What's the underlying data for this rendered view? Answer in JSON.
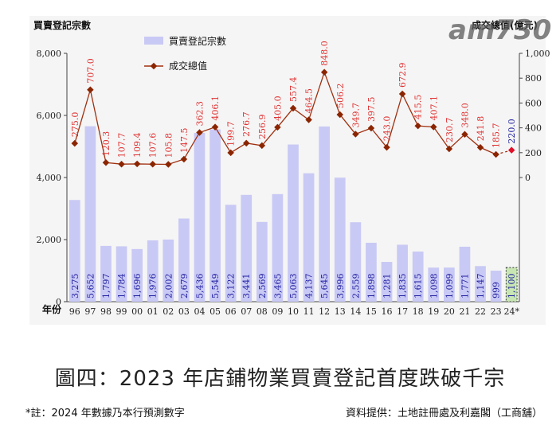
{
  "logo_text": "am730",
  "caption": "圖四：2023 年店鋪物業買賣登記首度跌破千宗",
  "note_left": "*註：2024 年數據乃本行預測數字",
  "note_right": "資料提供：土地註冊處及利嘉閣（工商舖）",
  "colors": {
    "bar": "#c9c9f5",
    "bar_forecast": "#c8e6b4",
    "line": "#a03010",
    "marker": "#8b2500",
    "marker_forecast": "#e0102a",
    "value_red": "#e03030",
    "value_blue": "#2020a0",
    "plot_bg": "#f5f5f5"
  },
  "chart_data": {
    "type": "bar",
    "left_axis_label": "買賣登記宗數",
    "right_axis_label": "成交總值(億元)",
    "xlabel": "年份",
    "categories": [
      "96",
      "97",
      "98",
      "99",
      "00",
      "01",
      "02",
      "03",
      "04",
      "05",
      "06",
      "07",
      "08",
      "09",
      "10",
      "11",
      "12",
      "13",
      "14",
      "15",
      "16",
      "17",
      "18",
      "19",
      "20",
      "21",
      "22",
      "23",
      "24*"
    ],
    "ylim_left": [
      0,
      8000
    ],
    "yticks_left": [
      "0",
      "2,000",
      "4,000",
      "6,000",
      "8,000"
    ],
    "ylim_right": [
      -1000,
      1000
    ],
    "yticks_right": [
      "0",
      "200",
      "400",
      "600",
      "800",
      "1,000"
    ],
    "yticks_right_values": [
      0,
      200,
      400,
      600,
      800,
      1000
    ],
    "series": [
      {
        "name": "買賣登記宗數",
        "kind": "bar",
        "values": [
          3275,
          5652,
          1797,
          1784,
          1696,
          1976,
          2002,
          2679,
          5436,
          5549,
          3122,
          3441,
          2569,
          3465,
          5063,
          4137,
          5645,
          3996,
          2559,
          1898,
          1281,
          1835,
          1615,
          1098,
          1099,
          1771,
          1147,
          999,
          1100
        ],
        "labels": [
          "3,275",
          "5,652",
          "1,797",
          "1,784",
          "1,696",
          "1,976",
          "2,002",
          "2,679",
          "5,436",
          "5,549",
          "3,122",
          "3,441",
          "2,569",
          "3,465",
          "5,063",
          "4,137",
          "5,645",
          "3,996",
          "2,559",
          "1,898",
          "1,281",
          "1,835",
          "1,615",
          "1,098",
          "1,099",
          "1,771",
          "1,147",
          "999",
          "1,100"
        ]
      },
      {
        "name": "成交總值",
        "kind": "line",
        "values": [
          275.0,
          707.0,
          120.3,
          107.7,
          109.4,
          107.6,
          105.8,
          147.5,
          362.3,
          406.1,
          199.7,
          276.7,
          256.9,
          405.0,
          557.4,
          464.5,
          848.0,
          506.2,
          349.7,
          397.5,
          243.0,
          672.9,
          415.5,
          407.1,
          230.7,
          348.0,
          241.8,
          185.7,
          220.0
        ],
        "labels": [
          "275.0",
          "707.0",
          "120.3",
          "107.7",
          "109.4",
          "107.6",
          "105.8",
          "147.5",
          "362.3",
          "406.1",
          "199.7",
          "276.7",
          "256.9",
          "405.0",
          "557.4",
          "464.5",
          "848.0",
          "506.2",
          "349.7",
          "397.5",
          "243.0",
          "672.9",
          "415.5",
          "407.1",
          "230.7",
          "348.0",
          "241.8",
          "185.7",
          "220.0"
        ]
      }
    ],
    "legend_position": "top-center",
    "grid": false
  }
}
